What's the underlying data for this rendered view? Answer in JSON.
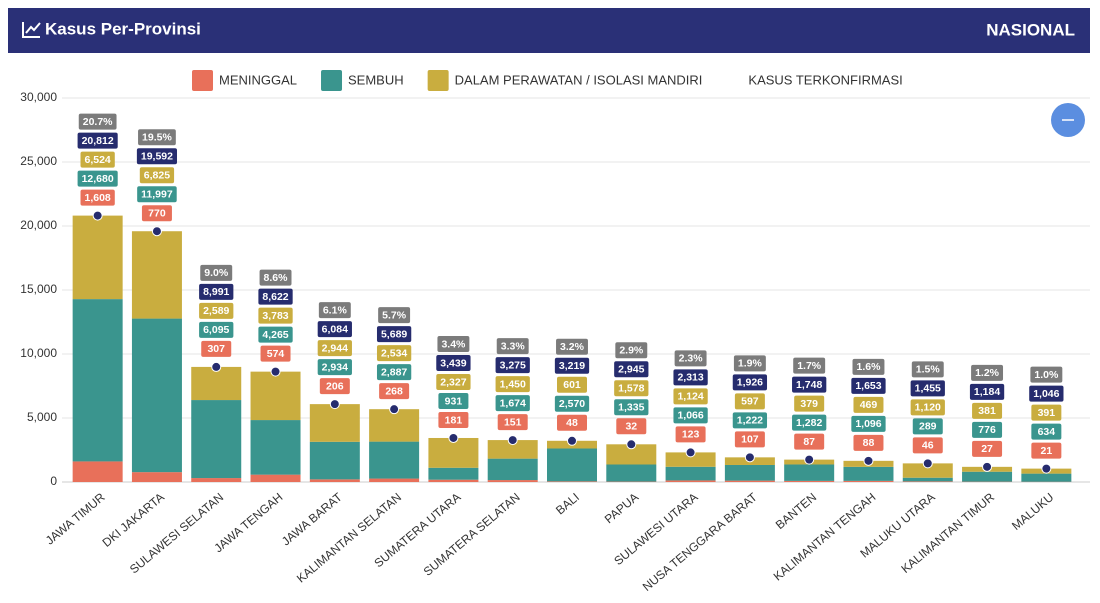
{
  "header": {
    "title": "Kasus Per-Provinsi",
    "scope": "NASIONAL"
  },
  "chart_data": {
    "type": "bar",
    "stacked": true,
    "categories": [
      "JAWA TIMUR",
      "DKI JAKARTA",
      "SULAWESI SELATAN",
      "JAWA TENGAH",
      "JAWA BARAT",
      "KALIMANTAN SELATAN",
      "SUMATERA UTARA",
      "SUMATERA SELATAN",
      "BALI",
      "PAPUA",
      "SULAWESI UTARA",
      "NUSA TENGGARA BARAT",
      "BANTEN",
      "KALIMANTAN TENGAH",
      "MALUKU UTARA",
      "KALIMANTAN TIMUR",
      "MALUKU"
    ],
    "series": [
      {
        "name": "MENINGGAL",
        "color": "#e8705a",
        "values": [
          1608,
          770,
          307,
          574,
          206,
          268,
          181,
          151,
          48,
          32,
          123,
          107,
          87,
          88,
          46,
          27,
          21
        ],
        "value_labels": [
          "1,608",
          "770",
          "307",
          "574",
          "206",
          "268",
          "181",
          "151",
          "48",
          "32",
          "123",
          "107",
          "87",
          "88",
          "46",
          "27",
          "21"
        ]
      },
      {
        "name": "SEMBUH",
        "color": "#3a958e",
        "values": [
          12680,
          11997,
          6095,
          4265,
          2934,
          2887,
          931,
          1674,
          2570,
          1335,
          1066,
          1222,
          1282,
          1096,
          289,
          776,
          634
        ],
        "value_labels": [
          "12,680",
          "11,997",
          "6,095",
          "4,265",
          "2,934",
          "2,887",
          "931",
          "1,674",
          "2,570",
          "1,335",
          "1,066",
          "1,222",
          "1,282",
          "1,096",
          "289",
          "776",
          "634"
        ]
      },
      {
        "name": "DALAM PERAWATAN / ISOLASI MANDIRI",
        "color": "#c9ad3f",
        "values": [
          6524,
          6825,
          2589,
          3783,
          2944,
          2534,
          2327,
          1450,
          601,
          1578,
          1124,
          597,
          379,
          469,
          1120,
          381,
          391
        ],
        "value_labels": [
          "6,524",
          "6,825",
          "2,589",
          "3,783",
          "2,944",
          "2,534",
          "2,327",
          "1,450",
          "601",
          "1,578",
          "1,124",
          "597",
          "379",
          "469",
          "1,120",
          "381",
          "391"
        ]
      },
      {
        "name": "KASUS TERKONFIRMASI",
        "type": "markers",
        "color": "#262c6e",
        "values": [
          20812,
          19592,
          8991,
          8622,
          6084,
          5689,
          3439,
          3275,
          3219,
          2945,
          2313,
          1926,
          1748,
          1653,
          1455,
          1184,
          1046
        ],
        "value_labels": [
          "20,812",
          "19,592",
          "8,991",
          "8,622",
          "6,084",
          "5,689",
          "3,439",
          "3,275",
          "3,219",
          "2,945",
          "2,313",
          "1,926",
          "1,748",
          "1,653",
          "1,455",
          "1,184",
          "1,046"
        ]
      }
    ],
    "percentages": [
      20.7,
      19.5,
      9.0,
      8.6,
      6.1,
      5.7,
      3.4,
      3.3,
      3.2,
      2.9,
      2.3,
      1.9,
      1.7,
      1.6,
      1.5,
      1.2,
      1.0
    ],
    "percentage_labels": [
      "20.7%",
      "19.5%",
      "9.0%",
      "8.6%",
      "6.1%",
      "5.7%",
      "3.4%",
      "3.3%",
      "3.2%",
      "2.9%",
      "2.3%",
      "1.9%",
      "1.7%",
      "1.6%",
      "1.5%",
      "1.2%",
      "1.0%"
    ],
    "percentage_color": "#7b7b7b",
    "ylim": [
      0,
      30000
    ],
    "yticks": [
      0,
      {
        "value": 5000,
        "label": "5,000"
      },
      {
        "value": 10000,
        "label": "10,000"
      },
      {
        "value": 15000,
        "label": "15,000"
      },
      {
        "value": 20000,
        "label": "20,000"
      },
      {
        "value": 25000,
        "label": "25,000"
      },
      {
        "value": 30000,
        "label": "30,000"
      }
    ],
    "grid": true
  }
}
